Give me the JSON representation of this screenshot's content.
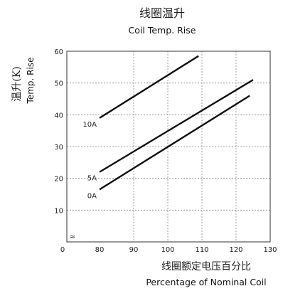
{
  "chart_data": {
    "type": "line",
    "title": "线圈温升",
    "subtitle": "Coil Temp. Rise",
    "ylabel": "温升(K)",
    "ylabel_en": "Temp. Rise",
    "xlabel": "线圈额定电压百分比",
    "xlabel_en": "Percentage of Nominal Coil",
    "xlim": [
      80,
      130
    ],
    "ylim": [
      0,
      60
    ],
    "x_origin_label": "0",
    "x_ticks": [
      80,
      90,
      100,
      110,
      120,
      130
    ],
    "y_ticks": [
      10,
      20,
      30,
      40,
      50,
      60
    ],
    "axis_break_symbol": "≈",
    "grid": true,
    "series": [
      {
        "name": "10A",
        "x": [
          80,
          109
        ],
        "y": [
          39,
          58.5
        ]
      },
      {
        "name": "5A",
        "x": [
          80,
          125
        ],
        "y": [
          22,
          51
        ]
      },
      {
        "name": "0A",
        "x": [
          80,
          124
        ],
        "y": [
          16.5,
          46
        ]
      }
    ]
  }
}
